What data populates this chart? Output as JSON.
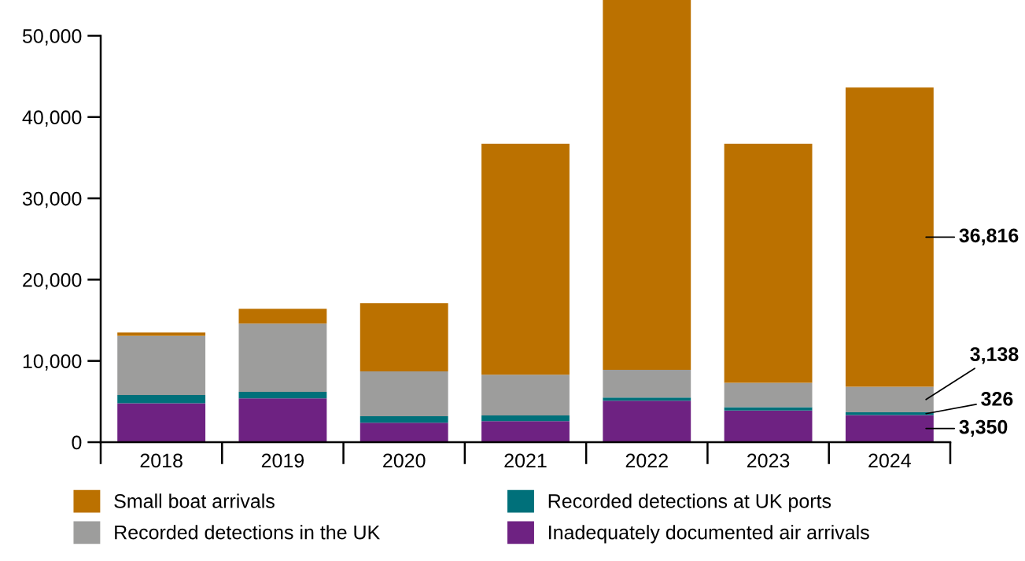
{
  "chart_data": {
    "type": "bar",
    "stacked": true,
    "categories": [
      "2018",
      "2019",
      "2020",
      "2021",
      "2022",
      "2023",
      "2024"
    ],
    "series": [
      {
        "name": "Inadequately documented air arrivals",
        "color": "#6e2282",
        "values": [
          4800,
          5400,
          2400,
          2600,
          5100,
          3900,
          3350
        ],
        "value_labels": [
          null,
          null,
          null,
          null,
          null,
          null,
          "3,350"
        ]
      },
      {
        "name": "Recorded detections at UK ports",
        "color": "#00707a",
        "values": [
          1000,
          800,
          800,
          700,
          400,
          400,
          326
        ],
        "value_labels": [
          null,
          null,
          null,
          null,
          null,
          null,
          "326"
        ]
      },
      {
        "name": "Recorded detections in the UK",
        "color": "#9d9d9c",
        "values": [
          7300,
          8400,
          5500,
          5000,
          3400,
          3000,
          3138
        ],
        "value_labels": [
          null,
          null,
          null,
          null,
          null,
          null,
          "3,138"
        ]
      },
      {
        "name": "Small boat arrivals",
        "color": "#bb7100",
        "values": [
          400,
          1800,
          8400,
          28400,
          45500,
          29400,
          36816
        ],
        "value_labels": [
          null,
          null,
          null,
          null,
          null,
          null,
          "36,816"
        ]
      }
    ],
    "ylim": [
      0,
      54400
    ],
    "yticks": [
      {
        "value": 0,
        "label": "0"
      },
      {
        "value": 10000,
        "label": "10,000"
      },
      {
        "value": 20000,
        "label": "20,000"
      },
      {
        "value": 30000,
        "label": "30,000"
      },
      {
        "value": 40000,
        "label": "40,000"
      },
      {
        "value": 50000,
        "label": "50,000"
      }
    ],
    "grid": false,
    "legend": "bottom"
  }
}
